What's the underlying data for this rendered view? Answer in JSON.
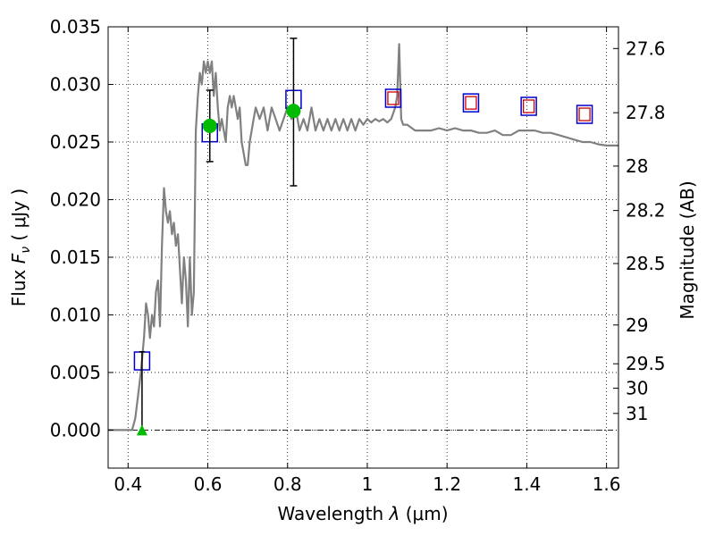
{
  "chart_data": {
    "type": "scatter",
    "xlabel_text": "Wavelength",
    "xlabel_symbol": "λ",
    "xlabel_unit": "(μm)",
    "ylabel_text": "Flux",
    "ylabel_symbol": "F",
    "ylabel_subscript": "ν",
    "ylabel_unit": "( μJy )",
    "y2label": "Magnitude (AB)",
    "xlim": [
      0.35,
      1.63
    ],
    "ylim": [
      -0.0033,
      0.035
    ],
    "grid": true,
    "x_ticks": [
      0.4,
      0.6,
      0.8,
      1.0,
      1.2,
      1.4,
      1.6
    ],
    "x_tick_labels": [
      "0.4",
      "0.6",
      "0.8",
      "1",
      "1.2",
      "1.4",
      "1.6"
    ],
    "y_ticks": [
      0.0,
      0.005,
      0.01,
      0.015,
      0.02,
      0.025,
      0.03,
      0.035
    ],
    "y_tick_labels": [
      "0.000",
      "0.005",
      "0.010",
      "0.015",
      "0.020",
      "0.025",
      "0.030",
      "0.035"
    ],
    "mag_ticks": [
      27.6,
      27.8,
      28,
      28.2,
      28.5,
      29,
      29.5,
      30,
      31
    ],
    "mag_tick_labels": [
      "27.6",
      "27.8",
      "28",
      "28.2",
      "28.5",
      "29",
      "29.5",
      "30",
      "31"
    ],
    "colors": {
      "sed": "#808080",
      "observed_box": "#0000cc",
      "model_box": "#cc0000",
      "detection": "#00bb00",
      "error_bar": "#000000",
      "zero_line": "#000000"
    },
    "series": [
      {
        "kind": "model_sed",
        "x": [
          0.35,
          0.41,
          0.418,
          0.425,
          0.432,
          0.44,
          0.445,
          0.45,
          0.455,
          0.46,
          0.465,
          0.47,
          0.475,
          0.48,
          0.485,
          0.49,
          0.495,
          0.5,
          0.505,
          0.51,
          0.515,
          0.52,
          0.525,
          0.53,
          0.535,
          0.54,
          0.545,
          0.55,
          0.555,
          0.56,
          0.565,
          0.57,
          0.575,
          0.58,
          0.585,
          0.59,
          0.595,
          0.6,
          0.605,
          0.61,
          0.615,
          0.62,
          0.625,
          0.63,
          0.635,
          0.64,
          0.645,
          0.65,
          0.655,
          0.66,
          0.665,
          0.67,
          0.675,
          0.68,
          0.685,
          0.69,
          0.695,
          0.7,
          0.705,
          0.71,
          0.715,
          0.72,
          0.73,
          0.74,
          0.75,
          0.76,
          0.77,
          0.78,
          0.79,
          0.8,
          0.81,
          0.82,
          0.83,
          0.84,
          0.85,
          0.86,
          0.87,
          0.88,
          0.89,
          0.9,
          0.91,
          0.92,
          0.93,
          0.94,
          0.95,
          0.96,
          0.97,
          0.98,
          0.99,
          1.0,
          1.01,
          1.02,
          1.03,
          1.04,
          1.05,
          1.06,
          1.07,
          1.075,
          1.08,
          1.085,
          1.09,
          1.1,
          1.12,
          1.14,
          1.16,
          1.18,
          1.2,
          1.22,
          1.24,
          1.26,
          1.28,
          1.3,
          1.32,
          1.34,
          1.36,
          1.38,
          1.4,
          1.42,
          1.44,
          1.46,
          1.48,
          1.5,
          1.52,
          1.54,
          1.56,
          1.58,
          1.6,
          1.63
        ],
        "y": [
          0.0,
          0.0,
          0.001,
          0.003,
          0.005,
          0.008,
          0.011,
          0.01,
          0.008,
          0.01,
          0.009,
          0.012,
          0.013,
          0.009,
          0.016,
          0.021,
          0.019,
          0.018,
          0.019,
          0.017,
          0.018,
          0.016,
          0.017,
          0.014,
          0.011,
          0.015,
          0.013,
          0.009,
          0.015,
          0.01,
          0.012,
          0.026,
          0.029,
          0.031,
          0.03,
          0.032,
          0.031,
          0.032,
          0.031,
          0.032,
          0.029,
          0.031,
          0.028,
          0.026,
          0.027,
          0.026,
          0.025,
          0.028,
          0.029,
          0.028,
          0.029,
          0.028,
          0.027,
          0.028,
          0.025,
          0.024,
          0.023,
          0.023,
          0.025,
          0.026,
          0.027,
          0.028,
          0.027,
          0.028,
          0.026,
          0.028,
          0.027,
          0.026,
          0.027,
          0.028,
          0.027,
          0.028,
          0.026,
          0.027,
          0.026,
          0.028,
          0.026,
          0.027,
          0.026,
          0.027,
          0.026,
          0.027,
          0.026,
          0.027,
          0.026,
          0.027,
          0.026,
          0.027,
          0.0265,
          0.027,
          0.0267,
          0.027,
          0.0268,
          0.027,
          0.0267,
          0.027,
          0.028,
          0.029,
          0.0335,
          0.027,
          0.0265,
          0.0265,
          0.026,
          0.026,
          0.026,
          0.0262,
          0.026,
          0.0262,
          0.026,
          0.026,
          0.0258,
          0.0258,
          0.026,
          0.0256,
          0.0256,
          0.026,
          0.026,
          0.026,
          0.0258,
          0.0258,
          0.0256,
          0.0254,
          0.0252,
          0.025,
          0.025,
          0.0248,
          0.0247,
          0.0247
        ]
      },
      {
        "kind": "observed_photometry_boxes",
        "x": [
          0.435,
          0.605,
          0.815,
          1.065,
          1.26,
          1.405,
          1.545
        ],
        "y": [
          0.006,
          0.0258,
          0.0287,
          0.0288,
          0.0284,
          0.0281,
          0.0274
        ]
      },
      {
        "kind": "model_photometry_boxes",
        "x": [
          1.065,
          1.26,
          1.405,
          1.545
        ],
        "y": [
          0.0288,
          0.0284,
          0.0281,
          0.0274
        ]
      },
      {
        "kind": "detections",
        "x": [
          0.605,
          0.815
        ],
        "y": [
          0.0264,
          0.0277
        ],
        "err_low": [
          0.0233,
          0.0212
        ],
        "err_high": [
          0.0295,
          0.034
        ]
      },
      {
        "kind": "upper_limit",
        "x": [
          0.435
        ],
        "y": [
          0.0
        ],
        "err_high": [
          0.0068
        ]
      }
    ]
  }
}
